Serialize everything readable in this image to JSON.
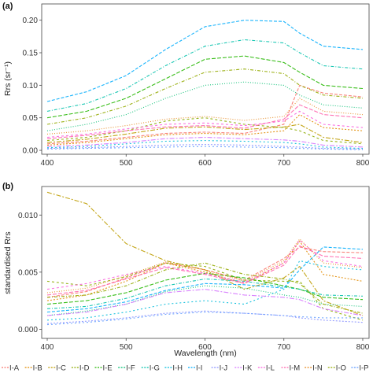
{
  "chart_data": [
    {
      "type": "line",
      "panel_label": "(a)",
      "ylabel": "Rrs (sr⁻¹)",
      "xlabel": "",
      "x_ticks": [
        400,
        500,
        600,
        700,
        800
      ],
      "y_ticks": [
        "0.00",
        "0.05",
        "0.10",
        "0.15",
        "0.20"
      ],
      "xlim": [
        393,
        808
      ],
      "ylim": [
        -0.006,
        0.225
      ],
      "grid": false,
      "series": [
        {
          "name": "I-A",
          "color": "#F8766D",
          "x": [
            400,
            450,
            500,
            550,
            600,
            650,
            700,
            720,
            750,
            800
          ],
          "y": [
            0.01,
            0.014,
            0.02,
            0.026,
            0.028,
            0.026,
            0.04,
            0.1,
            0.088,
            0.082
          ]
        },
        {
          "name": "I-B",
          "color": "#E18A00",
          "x": [
            400,
            450,
            500,
            550,
            600,
            650,
            700,
            720,
            750,
            800
          ],
          "y": [
            0.008,
            0.012,
            0.018,
            0.024,
            0.026,
            0.024,
            0.03,
            0.055,
            0.035,
            0.03
          ]
        },
        {
          "name": "I-C",
          "color": "#BE9C00",
          "x": [
            400,
            450,
            500,
            550,
            600,
            650,
            700,
            720,
            750,
            800
          ],
          "y": [
            0.012,
            0.017,
            0.025,
            0.034,
            0.036,
            0.032,
            0.036,
            0.04,
            0.02,
            0.012
          ]
        },
        {
          "name": "I-D",
          "color": "#8CAB00",
          "x": [
            400,
            450,
            500,
            550,
            600,
            650,
            700,
            720,
            750,
            800
          ],
          "y": [
            0.015,
            0.02,
            0.03,
            0.045,
            0.05,
            0.04,
            0.035,
            0.03,
            0.015,
            0.01
          ]
        },
        {
          "name": "I-E",
          "color": "#24B700",
          "x": [
            400,
            450,
            500,
            550,
            600,
            650,
            700,
            720,
            750,
            800
          ],
          "y": [
            0.05,
            0.06,
            0.08,
            0.11,
            0.14,
            0.145,
            0.135,
            0.12,
            0.1,
            0.095
          ]
        },
        {
          "name": "I-F",
          "color": "#00BE70",
          "x": [
            400,
            450,
            500,
            550,
            600,
            650,
            700,
            720,
            750,
            800
          ],
          "y": [
            0.03,
            0.04,
            0.055,
            0.08,
            0.1,
            0.105,
            0.1,
            0.085,
            0.07,
            0.065
          ]
        },
        {
          "name": "I-G",
          "color": "#00C1AB",
          "x": [
            400,
            450,
            500,
            550,
            600,
            650,
            700,
            720,
            750,
            800
          ],
          "y": [
            0.06,
            0.072,
            0.095,
            0.13,
            0.16,
            0.17,
            0.165,
            0.15,
            0.13,
            0.125
          ]
        },
        {
          "name": "I-H",
          "color": "#00BBDA",
          "x": [
            400,
            450,
            500,
            550,
            600,
            650,
            700,
            720,
            750,
            800
          ],
          "y": [
            0.004,
            0.006,
            0.01,
            0.014,
            0.015,
            0.014,
            0.012,
            0.01,
            0.005,
            0.003
          ]
        },
        {
          "name": "I-I",
          "color": "#00ACFC",
          "x": [
            400,
            450,
            500,
            550,
            600,
            650,
            700,
            720,
            750,
            800
          ],
          "y": [
            0.075,
            0.09,
            0.115,
            0.155,
            0.19,
            0.2,
            0.198,
            0.18,
            0.16,
            0.155
          ]
        },
        {
          "name": "I-J",
          "color": "#8B93FF",
          "x": [
            400,
            450,
            500,
            550,
            600,
            650,
            700,
            720,
            750,
            800
          ],
          "y": [
            0.003,
            0.004,
            0.006,
            0.008,
            0.009,
            0.008,
            0.006,
            0.005,
            0.003,
            0.002
          ]
        },
        {
          "name": "I-K",
          "color": "#D575FE",
          "x": [
            400,
            450,
            500,
            550,
            600,
            650,
            700,
            720,
            750,
            800
          ],
          "y": [
            0.006,
            0.008,
            0.012,
            0.018,
            0.02,
            0.018,
            0.016,
            0.014,
            0.008,
            0.005
          ]
        },
        {
          "name": "I-L",
          "color": "#F962DD",
          "x": [
            400,
            450,
            500,
            550,
            600,
            650,
            700,
            720,
            750,
            800
          ],
          "y": [
            0.02,
            0.025,
            0.033,
            0.04,
            0.042,
            0.038,
            0.045,
            0.06,
            0.04,
            0.035
          ]
        },
        {
          "name": "I-M",
          "color": "#FF65AC",
          "x": [
            400,
            450,
            500,
            550,
            600,
            650,
            700,
            720,
            750,
            800
          ],
          "y": [
            0.018,
            0.023,
            0.03,
            0.036,
            0.038,
            0.034,
            0.048,
            0.07,
            0.055,
            0.05
          ]
        },
        {
          "name": "I-N",
          "color": "#E7861B",
          "x": [
            400,
            450,
            500,
            550,
            600,
            650,
            700,
            720,
            750,
            800
          ],
          "y": [
            0.025,
            0.03,
            0.038,
            0.048,
            0.052,
            0.046,
            0.052,
            0.08,
            0.06,
            0.055
          ]
        },
        {
          "name": "I-O",
          "color": "#93AA00",
          "x": [
            400,
            450,
            500,
            550,
            600,
            650,
            700,
            720,
            750,
            800
          ],
          "y": [
            0.04,
            0.05,
            0.068,
            0.095,
            0.12,
            0.125,
            0.118,
            0.1,
            0.085,
            0.08
          ]
        },
        {
          "name": "I-P",
          "color": "#619CFF",
          "x": [
            400,
            450,
            500,
            550,
            600,
            650,
            700,
            720,
            750,
            800
          ],
          "y": [
            0.002,
            0.003,
            0.004,
            0.005,
            0.006,
            0.005,
            0.004,
            0.003,
            0.002,
            0.001
          ]
        }
      ]
    },
    {
      "type": "line",
      "panel_label": "(b)",
      "ylabel": "standardised Rrs",
      "xlabel": "Wavelength (nm)",
      "x_ticks": [
        400,
        500,
        600,
        700,
        800
      ],
      "y_ticks": [
        "0.000",
        "0.005",
        "0.010"
      ],
      "xlim": [
        393,
        808
      ],
      "ylim": [
        -0.0008,
        0.0125
      ],
      "grid": false,
      "series": [
        {
          "name": "I-A",
          "color": "#F8766D",
          "x": [
            400,
            450,
            500,
            550,
            600,
            650,
            700,
            720,
            750,
            800
          ],
          "y": [
            0.0028,
            0.0033,
            0.0045,
            0.0058,
            0.0052,
            0.0043,
            0.0062,
            0.0072,
            0.0068,
            0.0067
          ]
        },
        {
          "name": "I-B",
          "color": "#E18A00",
          "x": [
            400,
            450,
            500,
            550,
            600,
            650,
            700,
            720,
            750,
            800
          ],
          "y": [
            0.0025,
            0.003,
            0.0042,
            0.0058,
            0.005,
            0.004,
            0.0058,
            0.0077,
            0.0048,
            0.0042
          ]
        },
        {
          "name": "I-C",
          "color": "#BE9C00",
          "x": [
            400,
            450,
            500,
            550,
            600,
            650,
            700,
            720,
            750,
            800
          ],
          "y": [
            0.012,
            0.011,
            0.0075,
            0.006,
            0.0052,
            0.0035,
            0.0045,
            0.0055,
            0.0025,
            0.0012
          ]
        },
        {
          "name": "I-D",
          "color": "#8CAB00",
          "x": [
            400,
            450,
            500,
            550,
            600,
            650,
            700,
            720,
            750,
            800
          ],
          "y": [
            0.0042,
            0.0038,
            0.0046,
            0.0058,
            0.0055,
            0.0043,
            0.0042,
            0.0042,
            0.0018,
            0.0008
          ]
        },
        {
          "name": "I-E",
          "color": "#24B700",
          "x": [
            400,
            450,
            500,
            550,
            600,
            650,
            700,
            720,
            750,
            800
          ],
          "y": [
            0.0022,
            0.0025,
            0.0032,
            0.0043,
            0.0049,
            0.0045,
            0.0038,
            0.0035,
            0.0028,
            0.0026
          ]
        },
        {
          "name": "I-F",
          "color": "#00BE70",
          "x": [
            400,
            450,
            500,
            550,
            600,
            650,
            700,
            720,
            750,
            800
          ],
          "y": [
            0.0012,
            0.0016,
            0.0022,
            0.0033,
            0.0038,
            0.0036,
            0.003,
            0.0028,
            0.0022,
            0.002
          ]
        },
        {
          "name": "I-G",
          "color": "#00C1AB",
          "x": [
            400,
            450,
            500,
            550,
            600,
            650,
            700,
            720,
            750,
            800
          ],
          "y": [
            0.0018,
            0.002,
            0.0027,
            0.0038,
            0.0044,
            0.0042,
            0.0037,
            0.0035,
            0.003,
            0.0029
          ]
        },
        {
          "name": "I-H",
          "color": "#00BBDA",
          "x": [
            400,
            450,
            500,
            550,
            600,
            650,
            700,
            720,
            750,
            800
          ],
          "y": [
            0.0008,
            0.001,
            0.0015,
            0.0022,
            0.0025,
            0.0022,
            0.0035,
            0.006,
            0.0055,
            0.0052
          ]
        },
        {
          "name": "I-I",
          "color": "#00ACFC",
          "x": [
            400,
            450,
            500,
            550,
            600,
            650,
            700,
            720,
            750,
            800
          ],
          "y": [
            0.0015,
            0.0018,
            0.0024,
            0.0034,
            0.004,
            0.0039,
            0.0036,
            0.0052,
            0.0072,
            0.007
          ]
        },
        {
          "name": "I-J",
          "color": "#8B93FF",
          "x": [
            400,
            450,
            500,
            550,
            600,
            650,
            700,
            720,
            750,
            800
          ],
          "y": [
            0.0005,
            0.0007,
            0.001,
            0.0014,
            0.0016,
            0.0014,
            0.0012,
            0.001,
            0.0008,
            0.0006
          ]
        },
        {
          "name": "I-K",
          "color": "#D575FE",
          "x": [
            400,
            450,
            500,
            550,
            600,
            650,
            700,
            720,
            750,
            800
          ],
          "y": [
            0.0012,
            0.0015,
            0.0022,
            0.0032,
            0.0035,
            0.003,
            0.0028,
            0.0026,
            0.0018,
            0.0012
          ]
        },
        {
          "name": "I-L",
          "color": "#F962DD",
          "x": [
            400,
            450,
            500,
            550,
            600,
            650,
            700,
            720,
            750,
            800
          ],
          "y": [
            0.0035,
            0.004,
            0.0048,
            0.0055,
            0.0049,
            0.0041,
            0.0058,
            0.0078,
            0.006,
            0.0055
          ]
        },
        {
          "name": "I-M",
          "color": "#FF65AC",
          "x": [
            400,
            450,
            500,
            550,
            600,
            650,
            700,
            720,
            750,
            800
          ],
          "y": [
            0.003,
            0.0034,
            0.0044,
            0.0054,
            0.0048,
            0.004,
            0.0056,
            0.0073,
            0.0064,
            0.0062
          ]
        },
        {
          "name": "I-N",
          "color": "#E7861B",
          "x": [
            400,
            450,
            500,
            550,
            600,
            650,
            700,
            720,
            750,
            800
          ],
          "y": [
            0.0032,
            0.0036,
            0.0047,
            0.0059,
            0.0052,
            0.0042,
            0.006,
            0.0079,
            0.0058,
            0.0054
          ]
        },
        {
          "name": "I-O",
          "color": "#93AA00",
          "x": [
            400,
            450,
            500,
            550,
            600,
            650,
            700,
            720,
            750,
            800
          ],
          "y": [
            0.0028,
            0.003,
            0.0038,
            0.0052,
            0.0058,
            0.0048,
            0.0044,
            0.004,
            0.0022,
            0.0014
          ]
        },
        {
          "name": "I-P",
          "color": "#619CFF",
          "x": [
            400,
            450,
            500,
            550,
            600,
            650,
            700,
            720,
            750,
            800
          ],
          "y": [
            0.0004,
            0.0006,
            0.0009,
            0.0013,
            0.0015,
            0.0014,
            0.0012,
            0.0011,
            0.001,
            0.001
          ]
        }
      ]
    }
  ],
  "legend": {
    "placement": "bottom",
    "line_style": "dashed",
    "items": [
      "I-A",
      "I-B",
      "I-C",
      "I-D",
      "I-E",
      "I-F",
      "I-G",
      "I-H",
      "I-I",
      "I-J",
      "I-K",
      "I-L",
      "I-M",
      "I-N",
      "I-O",
      "I-P"
    ]
  }
}
